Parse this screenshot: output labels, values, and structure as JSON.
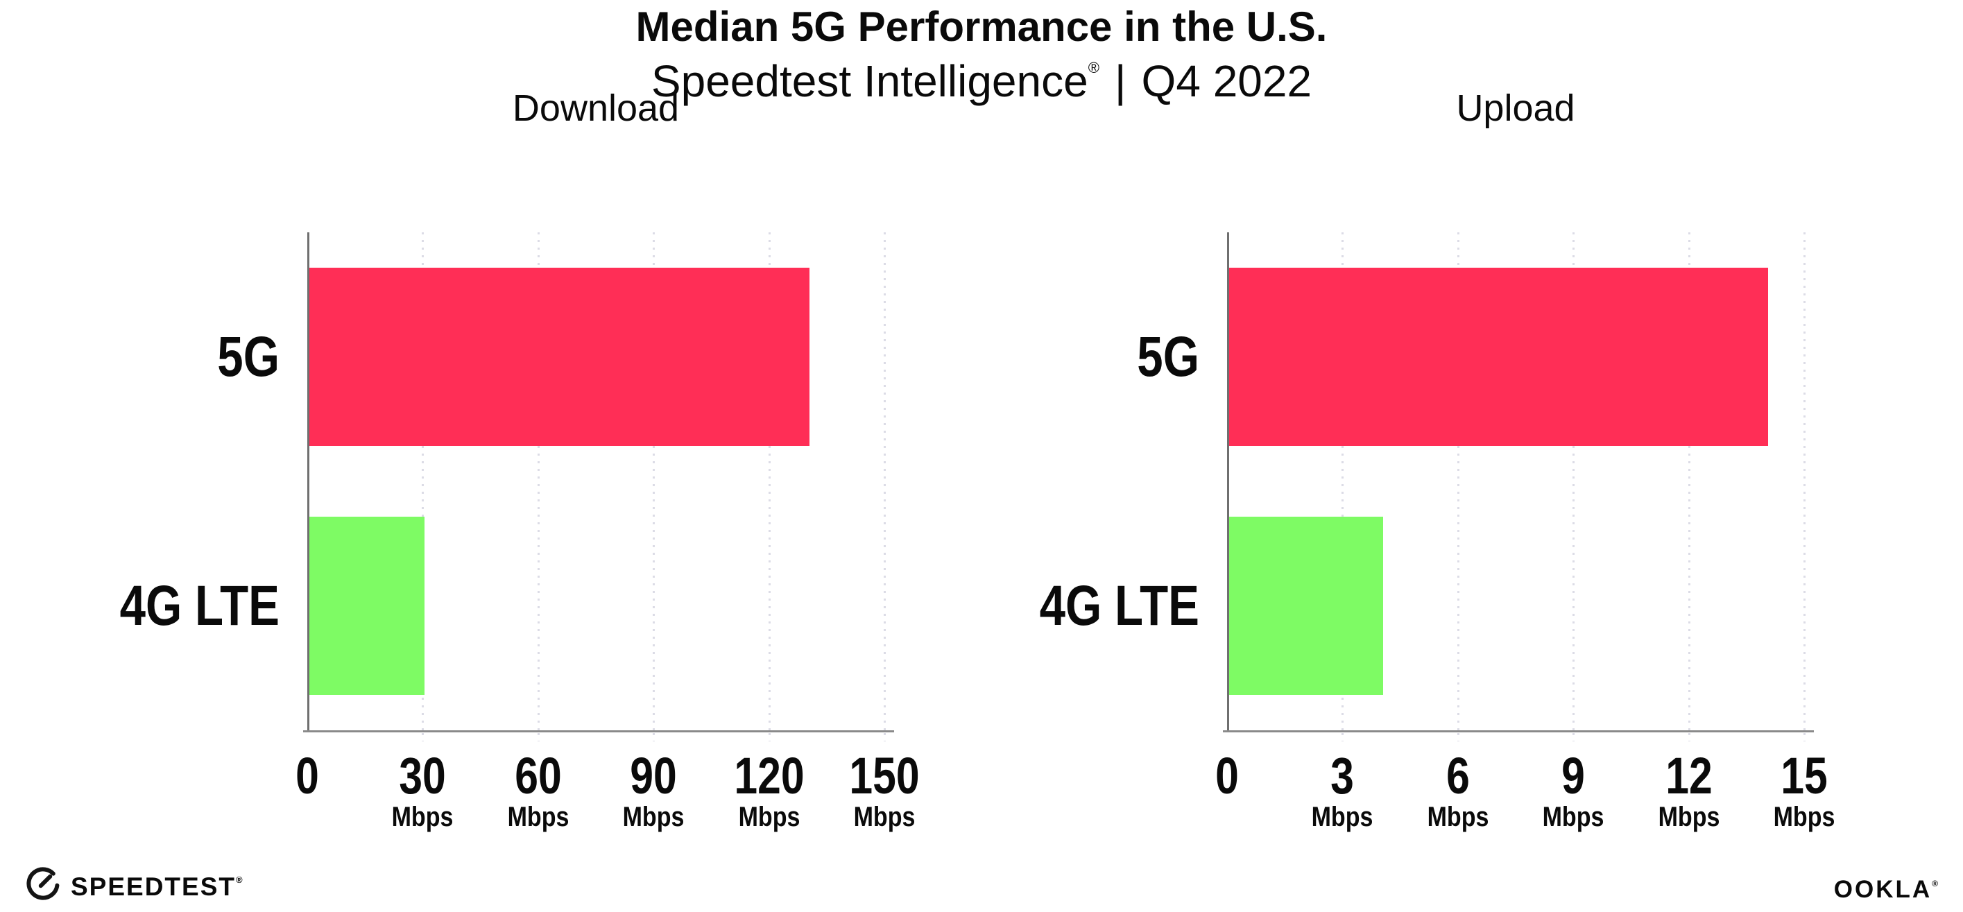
{
  "header": {
    "title": "Median 5G Performance in the U.S.",
    "subtitle_product": "Speedtest Intelligence",
    "subtitle_reg": "®",
    "subtitle_sep": "|",
    "subtitle_period": "Q4 2022"
  },
  "footer": {
    "speedtest_label": "SPEEDTEST",
    "speedtest_reg": "®",
    "ookla_label": "OOKLA",
    "ookla_reg": "®"
  },
  "colors": {
    "bg": "#ffffff",
    "text": "#0a0a0a",
    "bar_5g": "#ff2e56",
    "bar_4g_lte": "#7efb64",
    "axis": "#8a8a8a",
    "spine": "#6f6f6f",
    "grid": "#dcdce6"
  },
  "chart_data": [
    {
      "type": "bar",
      "orientation": "horizontal",
      "title": "Download",
      "categories": [
        "5G",
        "4G LTE"
      ],
      "values": [
        130,
        30
      ],
      "unit": "Mbps",
      "xlim": [
        0,
        150
      ],
      "xticks": [
        0,
        30,
        60,
        90,
        120,
        150
      ],
      "grid": "dotted-vertical",
      "legend": "none",
      "bar_colors": [
        "#ff2e56",
        "#7efb64"
      ]
    },
    {
      "type": "bar",
      "orientation": "horizontal",
      "title": "Upload",
      "categories": [
        "5G",
        "4G LTE"
      ],
      "values": [
        14,
        4
      ],
      "unit": "Mbps",
      "xlim": [
        0,
        15
      ],
      "xticks": [
        0,
        3,
        6,
        9,
        12,
        15
      ],
      "grid": "dotted-vertical",
      "legend": "none",
      "bar_colors": [
        "#ff2e56",
        "#7efb64"
      ]
    }
  ]
}
